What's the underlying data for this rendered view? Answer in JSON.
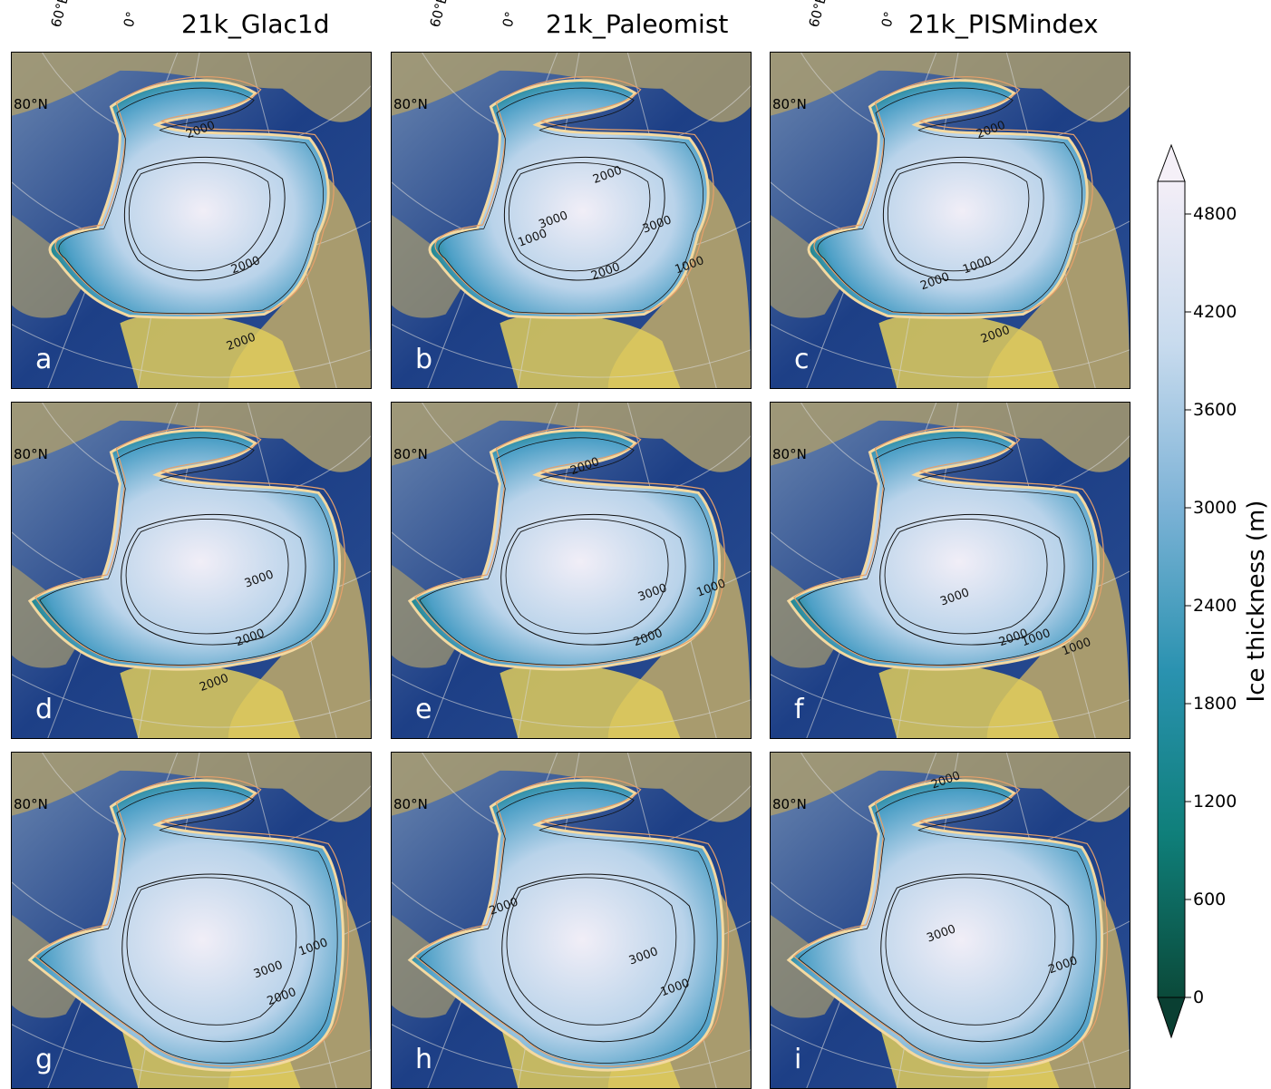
{
  "columns": [
    {
      "title": "21k_Glac1d",
      "lon_labels": [
        "60°E",
        "0°"
      ]
    },
    {
      "title": "21k_Paleomist",
      "lon_labels": [
        "60°E",
        "0°"
      ]
    },
    {
      "title": "21k_PISMindex",
      "lon_labels": [
        "60°E",
        "0°"
      ]
    }
  ],
  "panels": [
    {
      "letter": "a",
      "lat_label": "80°N",
      "contours": [
        "2000",
        "2000",
        "2000"
      ]
    },
    {
      "letter": "b",
      "lat_label": "80°N",
      "contours": [
        "2000",
        "1000",
        "3000",
        "3000",
        "2000",
        "1000"
      ]
    },
    {
      "letter": "c",
      "lat_label": "80°N",
      "contours": [
        "2000",
        "1000",
        "2000",
        "2000"
      ]
    },
    {
      "letter": "d",
      "lat_label": "80°N",
      "contours": [
        "3000",
        "2000",
        "2000"
      ]
    },
    {
      "letter": "e",
      "lat_label": "80°N",
      "contours": [
        "2000",
        "3000",
        "2000",
        "1000"
      ]
    },
    {
      "letter": "f",
      "lat_label": "80°N",
      "contours": [
        "3000",
        "2000",
        "1000",
        "1000"
      ]
    },
    {
      "letter": "g",
      "lat_label": "80°N",
      "contours": [
        "3000",
        "2000",
        "1000"
      ]
    },
    {
      "letter": "h",
      "lat_label": "80°N",
      "contours": [
        "2000",
        "3000",
        "1000"
      ]
    },
    {
      "letter": "i",
      "lat_label": "80°N",
      "contours": [
        "2000",
        "3000",
        "2000"
      ]
    }
  ],
  "colorbar": {
    "label": "Ice thickness (m)",
    "ticks": [
      "0",
      "600",
      "1200",
      "1800",
      "2400",
      "3000",
      "3600",
      "4200",
      "4800"
    ],
    "tick_values": [
      0,
      600,
      1200,
      1800,
      2400,
      3000,
      3600,
      4200,
      4800
    ],
    "range": [
      0,
      5000
    ],
    "colors": [
      "#0b4a3a",
      "#0f7f7a",
      "#2a92b0",
      "#7cb2d6",
      "#c8dbee",
      "#f3eef7"
    ]
  },
  "map_colors": {
    "ocean": "#1d3f86",
    "ocean_shallow": "#6a86b0",
    "land": "#a89b6e",
    "land_high": "#e0cc5c",
    "ice_margin": "#f4d9a0",
    "ice_edge_orange": "#e7a06a"
  }
}
